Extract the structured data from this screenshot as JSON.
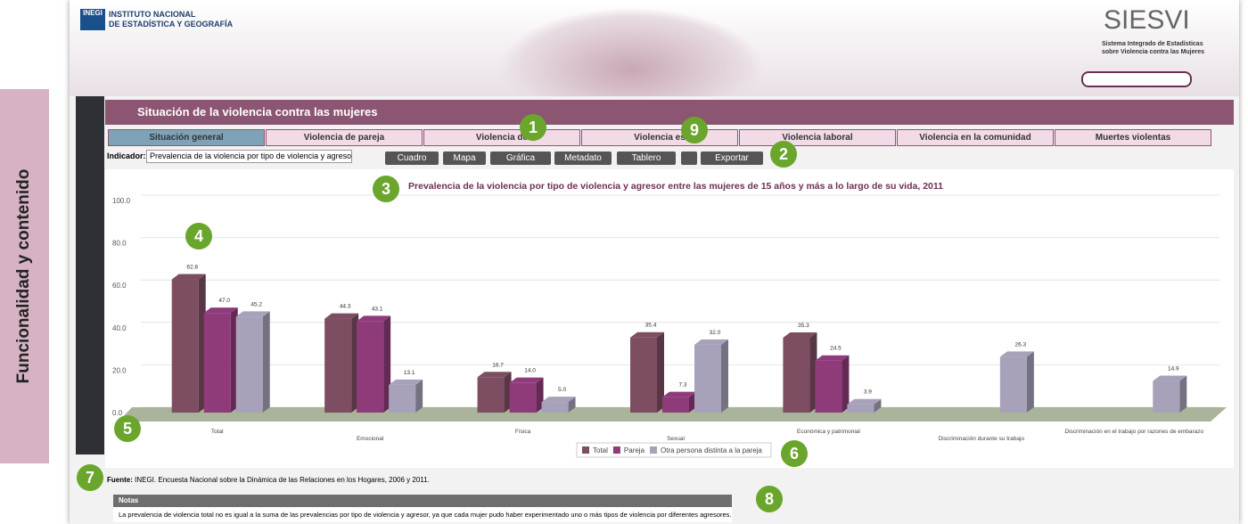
{
  "side_label": "Funcionalidad y contenido",
  "header": {
    "logo": "INEGI",
    "institute": "INSTITUTO NACIONAL",
    "institute2": "DE ESTADÍSTICA Y GEOGRAFÍA",
    "brand": "SIESVI",
    "brand_sub": "Sistema Integrado de Estadísticas",
    "brand_sub2": "sobre Violencia contra las Mujeres"
  },
  "section_title": "Situación de la violencia contra las mujeres",
  "tabs": [
    "Situación general",
    "Violencia de pareja",
    "Violencia de",
    "Violencia es",
    "Violencia laboral",
    "Violencia en la comunidad",
    "Muertes violentas"
  ],
  "indicator": {
    "label": "Indicador:",
    "value": "Prevalencia de la violencia por tipo de violencia y agreso"
  },
  "buttons": [
    "Cuadro",
    "Mapa",
    "Gráfica",
    "Metadato",
    "Tablero",
    "Exportar"
  ],
  "chart_data": {
    "type": "bar3d",
    "title": "Prevalencia de la violencia por tipo de violencia y agresor entre las mujeres de 15 años y más a lo largo de su vida, 2011",
    "categories": [
      "Total",
      "Emocional",
      "Física",
      "Sexual",
      "Económica y patrimonial",
      "Discriminación durante su trabajo",
      "Discriminación en el trabajo por razones de embarazo"
    ],
    "series": [
      {
        "name": "Total",
        "color": "#7d4d62",
        "values": [
          62.8,
          44.3,
          16.7,
          35.4,
          35.3,
          null,
          null
        ],
        "value_labels": [
          "62.8",
          "44.3",
          "16.7",
          "35.4",
          "35.3",
          null,
          null
        ]
      },
      {
        "name": "Pareja",
        "color": "#8f3b7a",
        "values": [
          47.0,
          43.1,
          14.0,
          7.3,
          24.5,
          null,
          null
        ],
        "value_labels": [
          "47.0",
          "43.1",
          "14.0",
          "7.3",
          "24.5",
          null,
          null
        ]
      },
      {
        "name": "Otra persona distinta a la pareja",
        "color": "#a7a1b9",
        "values": [
          45.2,
          13.1,
          5.0,
          32.0,
          3.9,
          26.3,
          14.9
        ],
        "value_labels": [
          "45.2",
          "13.1",
          "5.0",
          "32.0",
          "3.9",
          "26.3",
          "14.9"
        ]
      }
    ],
    "ylim": [
      0,
      100
    ],
    "yticks": [
      {
        "value": 0,
        "label": "0.0"
      },
      {
        "value": 20,
        "label": "20.0"
      },
      {
        "value": 40,
        "label": "40.0"
      },
      {
        "value": 60,
        "label": "60.0"
      },
      {
        "value": 80,
        "label": "80.0"
      },
      {
        "value": 100,
        "label": "100.0"
      }
    ],
    "grid": true,
    "legend": "bottom"
  },
  "source": {
    "label": "Fuente:",
    "text": "INEGI. Encuesta Nacional sobre la Dinámica de las Relaciones en los Hogares, 2006 y 2011."
  },
  "notes": {
    "title": "Notas",
    "text": "La prevalencia de violencia total no es igual a la suma de las prevalencias por tipo de violencia y agresor, ya que cada mujer pudo haber experimentado uno o más tipos de violencia por diferentes agresores."
  },
  "callouts": [
    "1",
    "2",
    "3",
    "4",
    "5",
    "6",
    "7",
    "8",
    "9"
  ]
}
